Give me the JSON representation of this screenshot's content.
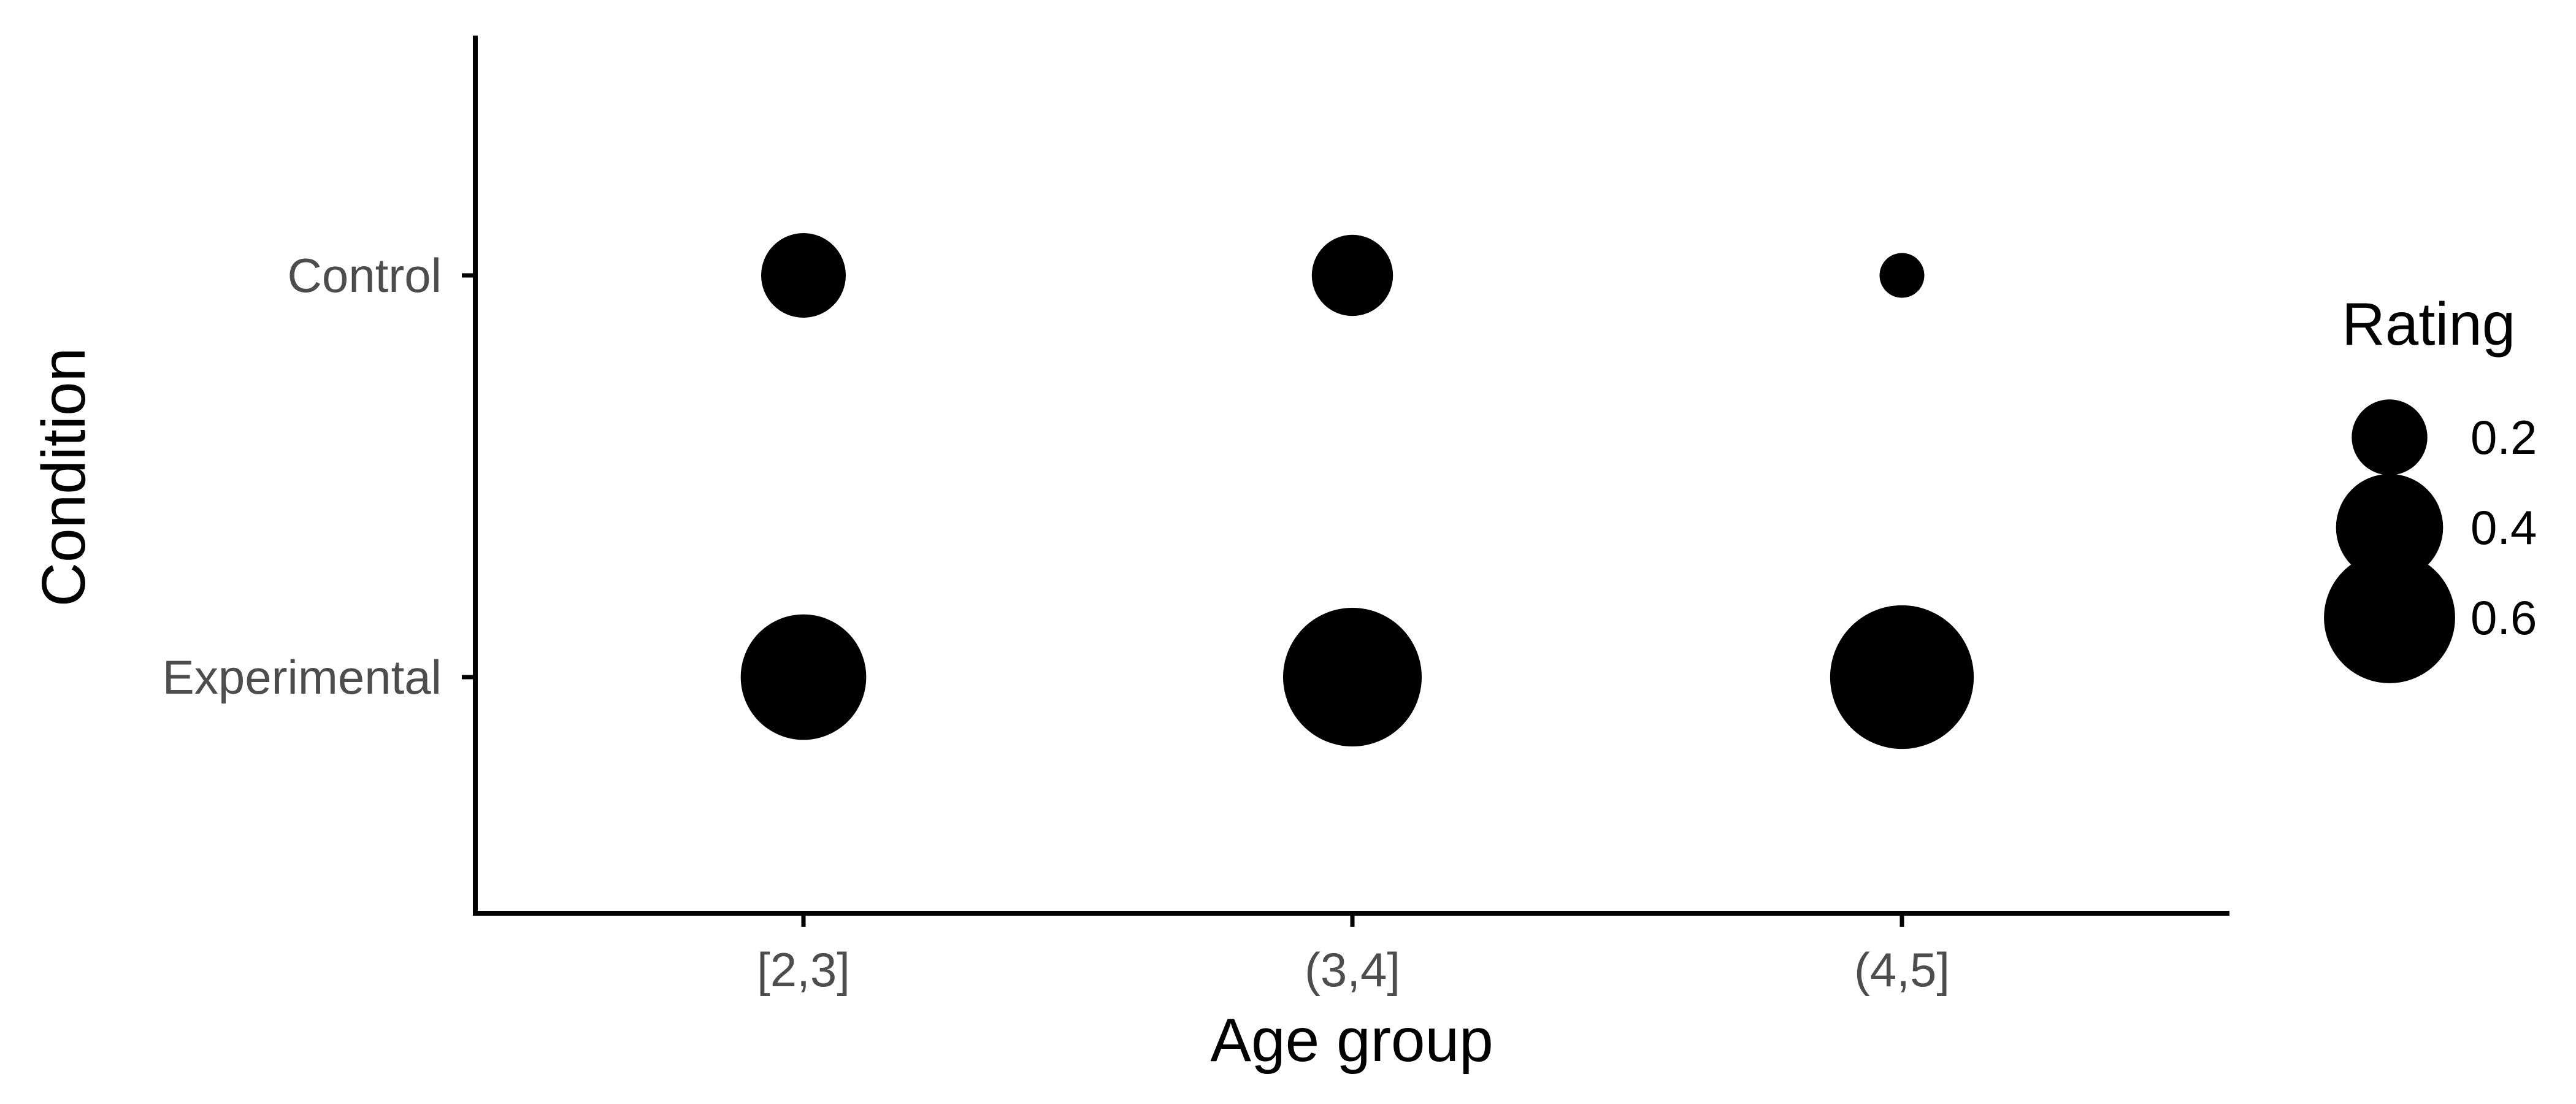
{
  "chart_data": {
    "type": "scatter",
    "title": "",
    "xlabel": "Age group",
    "ylabel": "Condition",
    "x_categories": [
      "[2,3]",
      "(3,4]",
      "(4,5]"
    ],
    "y_categories": [
      "Control",
      "Experimental"
    ],
    "size_legend": {
      "title": "Rating",
      "values": [
        0.2,
        0.4,
        0.6
      ],
      "labels": [
        "0.2",
        "0.4",
        "0.6"
      ],
      "placement": "right"
    },
    "series": [
      {
        "points": [
          {
            "x": "[2,3]",
            "y": "Control",
            "rating": 0.25
          },
          {
            "x": "(3,4]",
            "y": "Control",
            "rating": 0.23
          },
          {
            "x": "(4,5]",
            "y": "Control",
            "rating": 0.07
          },
          {
            "x": "[2,3]",
            "y": "Experimental",
            "rating": 0.55
          },
          {
            "x": "(3,4]",
            "y": "Experimental",
            "rating": 0.67
          },
          {
            "x": "(4,5]",
            "y": "Experimental",
            "rating": 0.72
          }
        ]
      }
    ],
    "grid": false,
    "colors": {
      "point": "#000000",
      "axis": "#000000",
      "tick_label": "#4d4d4d",
      "background": "#ffffff"
    }
  }
}
